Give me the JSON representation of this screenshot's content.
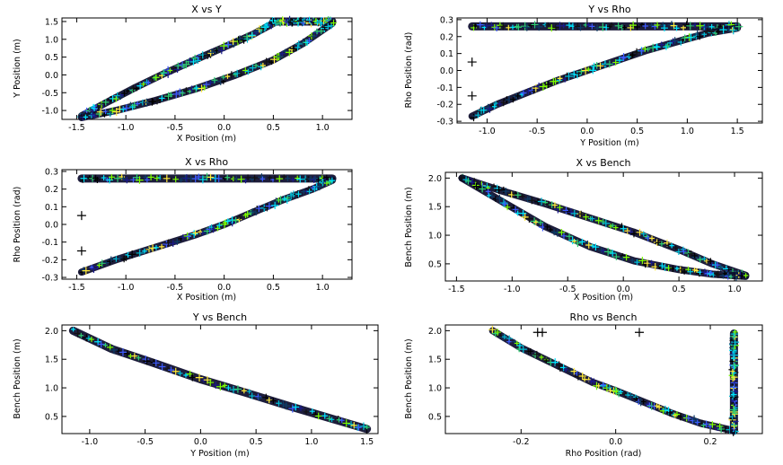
{
  "chart_data": [
    {
      "type": "scatter",
      "title": "X vs Y",
      "xlabel": "X Position (m)",
      "ylabel": "Y Position (m)",
      "xlim": [
        -1.65,
        1.3
      ],
      "ylim": [
        -1.25,
        1.6
      ],
      "xticks": [
        -1.5,
        -1.0,
        -0.5,
        0.0,
        0.5,
        1.0
      ],
      "yticks": [
        -1.0,
        -0.5,
        0.0,
        0.5,
        1.0,
        1.5
      ],
      "tick_labels_x": [
        "-1.5",
        "-1.0",
        "-0.5",
        "0.0",
        "0.5",
        "1.0"
      ],
      "tick_labels_y": [
        "-1.0",
        "-0.5",
        "0.0",
        "0.5",
        "1.0",
        "1.5"
      ],
      "series": [
        {
          "name": "upper-branch",
          "x": [
            -1.45,
            -1.2,
            -0.9,
            -0.6,
            -0.3,
            0.0,
            0.3,
            0.5
          ],
          "y": [
            -1.15,
            -0.78,
            -0.35,
            0.05,
            0.42,
            0.78,
            1.15,
            1.45
          ]
        },
        {
          "name": "top-plateau",
          "x": [
            0.5,
            0.6,
            0.7,
            0.8,
            0.9,
            1.0,
            1.1
          ],
          "y": [
            1.5,
            1.5,
            1.5,
            1.5,
            1.5,
            1.5,
            1.5
          ]
        },
        {
          "name": "lower-branch",
          "x": [
            -1.45,
            -1.1,
            -0.7,
            -0.3,
            0.1,
            0.5,
            0.8,
            1.1
          ],
          "y": [
            -1.2,
            -1.0,
            -0.72,
            -0.4,
            -0.02,
            0.42,
            0.88,
            1.45
          ]
        }
      ]
    },
    {
      "type": "scatter",
      "title": "Y vs Rho",
      "xlabel": "Y Position (m)",
      "ylabel": "Rho Position (rad)",
      "xlim": [
        -1.3,
        1.75
      ],
      "ylim": [
        -0.31,
        0.31
      ],
      "xticks": [
        -1.0,
        -0.5,
        0.0,
        0.5,
        1.0,
        1.5
      ],
      "yticks": [
        -0.3,
        -0.2,
        -0.1,
        0.0,
        0.1,
        0.2,
        0.3
      ],
      "tick_labels_x": [
        "-1.0",
        "-0.5",
        "0.0",
        "0.5",
        "1.0",
        "1.5"
      ],
      "tick_labels_y": [
        "-0.3",
        "-0.2",
        "-0.1",
        "0.0",
        "0.1",
        "0.2",
        "0.3"
      ],
      "series": [
        {
          "name": "top-band",
          "x": [
            -1.15,
            -0.8,
            -0.4,
            0.0,
            0.4,
            0.8,
            1.2,
            1.5
          ],
          "y": [
            0.26,
            0.26,
            0.26,
            0.26,
            0.26,
            0.26,
            0.26,
            0.26
          ]
        },
        {
          "name": "curve",
          "x": [
            -1.15,
            -0.9,
            -0.6,
            -0.3,
            0.0,
            0.3,
            0.6,
            0.9,
            1.2,
            1.5
          ],
          "y": [
            -0.27,
            -0.2,
            -0.13,
            -0.06,
            0.0,
            0.06,
            0.12,
            0.17,
            0.22,
            0.25
          ]
        },
        {
          "name": "outliers",
          "x": [
            -1.15,
            -1.15
          ],
          "y": [
            0.05,
            -0.15
          ]
        }
      ]
    },
    {
      "type": "scatter",
      "title": "X vs Rho",
      "xlabel": "X Position (m)",
      "ylabel": "Rho Position (rad)",
      "xlim": [
        -1.65,
        1.3
      ],
      "ylim": [
        -0.31,
        0.31
      ],
      "xticks": [
        -1.5,
        -1.0,
        -0.5,
        0.0,
        0.5,
        1.0
      ],
      "yticks": [
        -0.3,
        -0.2,
        -0.1,
        0.0,
        0.1,
        0.2,
        0.3
      ],
      "tick_labels_x": [
        "-1.5",
        "-1.0",
        "-0.5",
        "0.0",
        "0.5",
        "1.0"
      ],
      "tick_labels_y": [
        "-0.3",
        "-0.2",
        "-0.1",
        "0.0",
        "0.1",
        "0.2",
        "0.3"
      ],
      "series": [
        {
          "name": "top-band",
          "x": [
            -1.45,
            -1.1,
            -0.7,
            -0.3,
            0.1,
            0.5,
            0.9,
            1.1
          ],
          "y": [
            0.26,
            0.26,
            0.26,
            0.26,
            0.26,
            0.26,
            0.26,
            0.26
          ]
        },
        {
          "name": "curve",
          "x": [
            -1.45,
            -1.1,
            -0.7,
            -0.3,
            0.0,
            0.3,
            0.6,
            0.9,
            1.1
          ],
          "y": [
            -0.27,
            -0.2,
            -0.13,
            -0.06,
            0.0,
            0.07,
            0.14,
            0.2,
            0.25
          ]
        },
        {
          "name": "outliers",
          "x": [
            -1.45,
            -1.45
          ],
          "y": [
            0.05,
            -0.15
          ]
        }
      ]
    },
    {
      "type": "scatter",
      "title": "X vs Bench",
      "xlabel": "X Position (m)",
      "ylabel": "Bench Position (m)",
      "xlim": [
        -1.6,
        1.25
      ],
      "ylim": [
        0.2,
        2.1
      ],
      "xticks": [
        -1.5,
        -1.0,
        -0.5,
        0.0,
        0.5,
        1.0
      ],
      "yticks": [
        0.5,
        1.0,
        1.5,
        2.0
      ],
      "tick_labels_x": [
        "-1.5",
        "-1.0",
        "-0.5",
        "0.0",
        "0.5",
        "1.0"
      ],
      "tick_labels_y": [
        "0.5",
        "1.0",
        "1.5",
        "2.0"
      ],
      "series": [
        {
          "name": "upper-branch",
          "x": [
            -1.45,
            -1.1,
            -0.7,
            -0.3,
            0.1,
            0.5,
            0.8,
            1.1
          ],
          "y": [
            2.0,
            1.78,
            1.55,
            1.3,
            1.05,
            0.75,
            0.5,
            0.3
          ]
        },
        {
          "name": "lower-branch",
          "x": [
            -1.45,
            -1.1,
            -0.7,
            -0.3,
            0.1,
            0.5,
            0.8,
            1.1
          ],
          "y": [
            2.0,
            1.6,
            1.15,
            0.8,
            0.55,
            0.4,
            0.32,
            0.28
          ]
        }
      ]
    },
    {
      "type": "scatter",
      "title": "Y vs Bench",
      "xlabel": "Y Position (m)",
      "ylabel": "Bench Position (m)",
      "xlim": [
        -1.25,
        1.6
      ],
      "ylim": [
        0.2,
        2.1
      ],
      "xticks": [
        -1.0,
        -0.5,
        0.0,
        0.5,
        1.0,
        1.5
      ],
      "yticks": [
        0.5,
        1.0,
        1.5,
        2.0
      ],
      "tick_labels_x": [
        "-1.0",
        "-0.5",
        "0.0",
        "0.5",
        "1.0",
        "1.5"
      ],
      "tick_labels_y": [
        "0.5",
        "1.0",
        "1.5",
        "2.0"
      ],
      "series": [
        {
          "name": "band",
          "x": [
            -1.15,
            -0.8,
            -0.4,
            0.0,
            0.4,
            0.8,
            1.2,
            1.5
          ],
          "y": [
            2.0,
            1.68,
            1.42,
            1.15,
            0.92,
            0.68,
            0.45,
            0.28
          ]
        }
      ]
    },
    {
      "type": "scatter",
      "title": "Rho vs Bench",
      "xlabel": "Rho Position (rad)",
      "ylabel": "Bench Position (m)",
      "xlim": [
        -0.36,
        0.31
      ],
      "ylim": [
        0.2,
        2.1
      ],
      "xticks": [
        -0.2,
        0.0,
        0.2
      ],
      "yticks": [
        0.5,
        1.0,
        1.5,
        2.0
      ],
      "tick_labels_x": [
        "-0.2",
        "0.0",
        "0.2"
      ],
      "tick_labels_y": [
        "0.5",
        "1.0",
        "1.5",
        "2.0"
      ],
      "series": [
        {
          "name": "curve",
          "x": [
            -0.26,
            -0.2,
            -0.12,
            -0.05,
            0.0,
            0.06,
            0.12,
            0.18,
            0.25
          ],
          "y": [
            2.0,
            1.7,
            1.38,
            1.1,
            0.95,
            0.75,
            0.55,
            0.38,
            0.25
          ]
        },
        {
          "name": "vertical-band",
          "x": [
            0.25,
            0.25,
            0.25,
            0.25,
            0.25,
            0.25,
            0.25,
            0.25
          ],
          "y": [
            0.25,
            0.5,
            0.75,
            1.0,
            1.25,
            1.5,
            1.75,
            1.95
          ]
        },
        {
          "name": "outliers",
          "x": [
            -0.165,
            -0.155,
            0.05
          ],
          "y": [
            1.97,
            1.97,
            1.97
          ]
        }
      ]
    }
  ]
}
